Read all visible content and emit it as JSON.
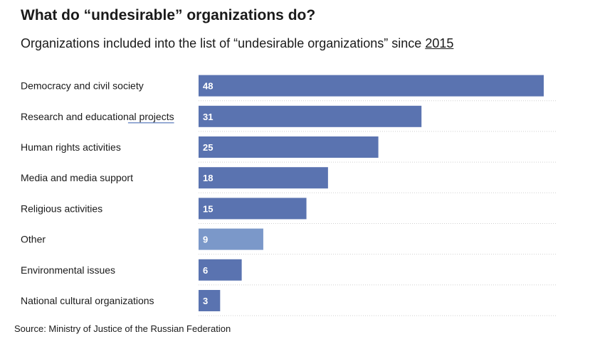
{
  "title": "What do “undesirable” organizations do?",
  "subtitle": {
    "text": "Organizations included into the list of “undesirable organizations” since ",
    "link": "2015"
  },
  "source": "Source: Ministry of Justice of the Russian Federation",
  "colors": {
    "bar": "#5a73b0",
    "bar_highlight": "#7b98c9",
    "label_text": "#ffffff",
    "gridline": "#cfcfcf"
  },
  "chart_data": {
    "type": "bar",
    "orientation": "horizontal",
    "categories": [
      "Democracy and civil society",
      "Research and educational projects",
      "Human rights activities",
      "Media and media support",
      "Religious activities",
      "Other",
      "Environmental issues",
      "National cultural organizations"
    ],
    "values": [
      48,
      31,
      25,
      18,
      15,
      9,
      6,
      3
    ],
    "highlight": [
      "Other"
    ],
    "xlim": [
      0,
      48
    ],
    "grid": false,
    "legend": "none"
  }
}
